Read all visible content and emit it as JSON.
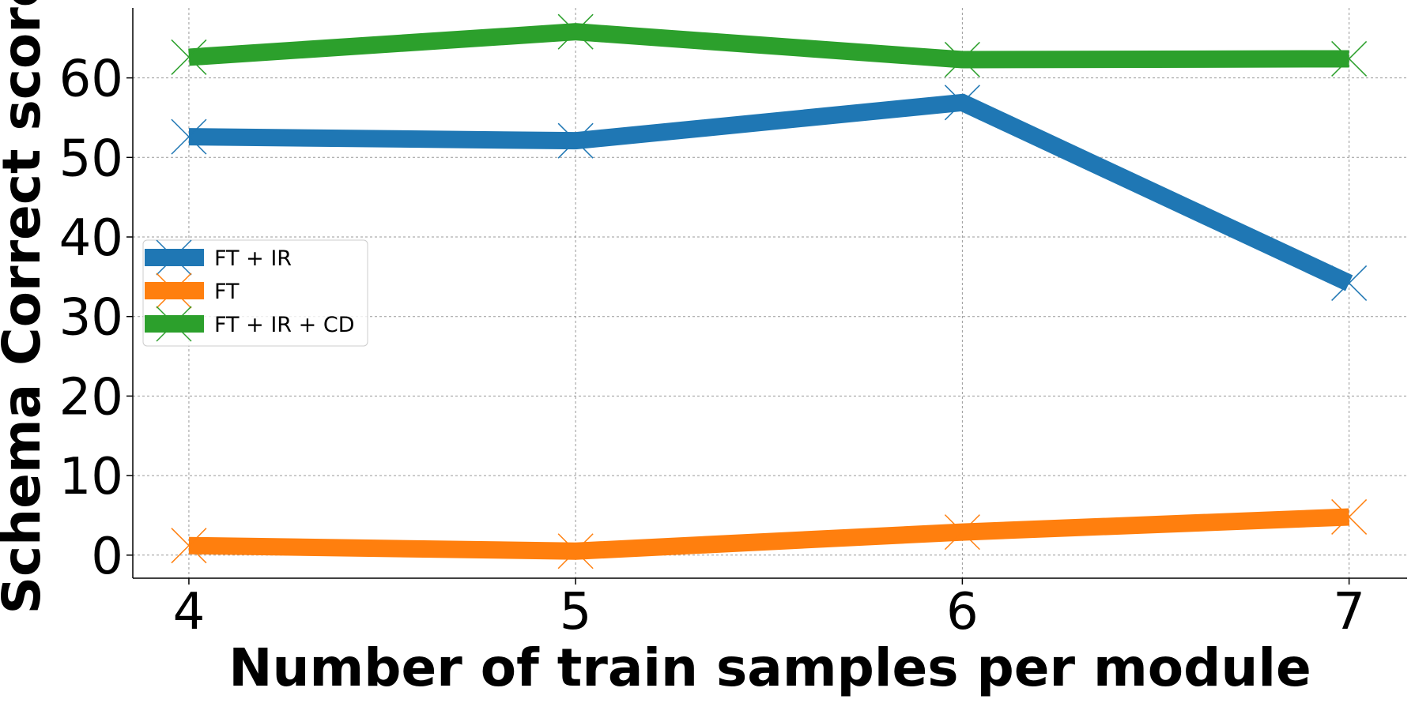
{
  "chart_data": {
    "type": "line",
    "title": "",
    "xlabel": "Number of train samples per module",
    "ylabel": "Schema Correct score",
    "x": [
      4,
      5,
      6,
      7
    ],
    "xticks": [
      "4",
      "5",
      "6",
      "7"
    ],
    "yticks": [
      "0",
      "10",
      "20",
      "30",
      "40",
      "50",
      "60"
    ],
    "xlim": [
      3.855,
      7.15
    ],
    "ylim": [
      -2.9,
      68.8
    ],
    "grid": true,
    "legend_position": "center-left",
    "series": [
      {
        "name": "FT + IR",
        "color": "#1f77b4",
        "values": [
          52.6,
          52.1,
          56.9,
          34.2
        ]
      },
      {
        "name": "FT",
        "color": "#ff7f0e",
        "values": [
          1.2,
          0.5,
          2.9,
          4.8
        ]
      },
      {
        "name": "FT + IR + CD",
        "color": "#2ca02c",
        "values": [
          62.6,
          65.8,
          62.3,
          62.4
        ]
      }
    ]
  }
}
